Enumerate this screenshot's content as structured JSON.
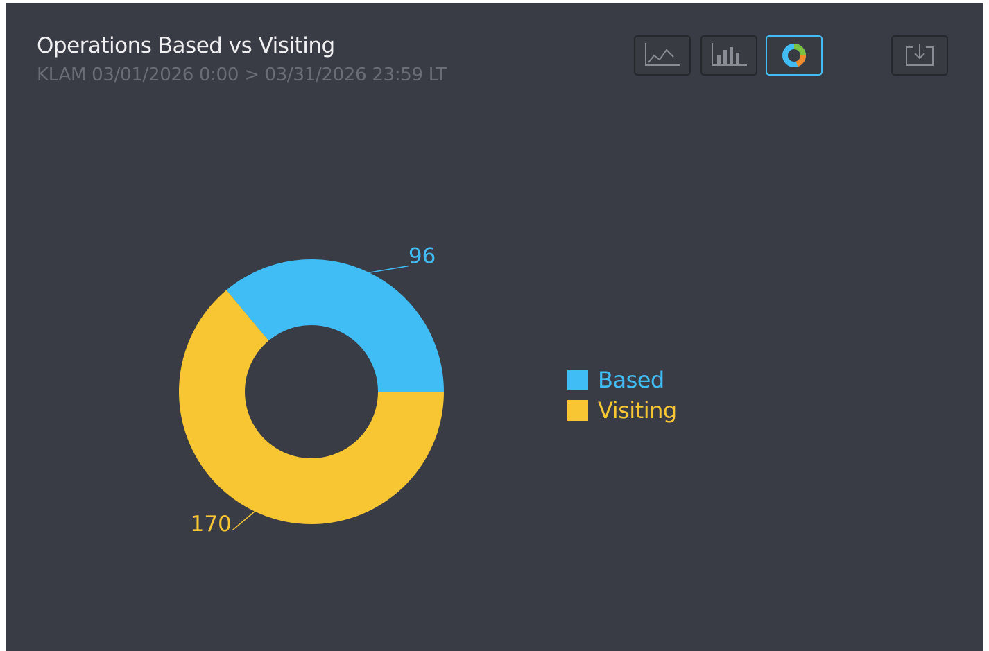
{
  "header": {
    "title": "Operations Based vs Visiting",
    "subtitle": "KLAM 03/01/2026 0:00 > 03/31/2026 23:59 LT"
  },
  "toolbar": {
    "buttons": [
      {
        "name": "line-chart-button",
        "icon": "line-chart-icon",
        "active": false
      },
      {
        "name": "bar-chart-button",
        "icon": "bar-chart-icon",
        "active": false
      },
      {
        "name": "donut-chart-button",
        "icon": "donut-chart-icon",
        "active": true
      },
      {
        "name": "download-button",
        "icon": "download-icon",
        "active": false
      }
    ]
  },
  "colors": {
    "background": "#3a3c45",
    "based": "#41bdf5",
    "visiting": "#f7c632",
    "active_border": "#41bdf5",
    "title": "#f0f0f2",
    "subtitle": "#6a6c76"
  },
  "chart_data": {
    "type": "pie",
    "variant": "donut",
    "categories": [
      "Based",
      "Visiting"
    ],
    "values": [
      96,
      170
    ],
    "colors": [
      "#41bdf5",
      "#f7c632"
    ],
    "legend_position": "right",
    "data_labels": [
      "96",
      "170"
    ]
  }
}
